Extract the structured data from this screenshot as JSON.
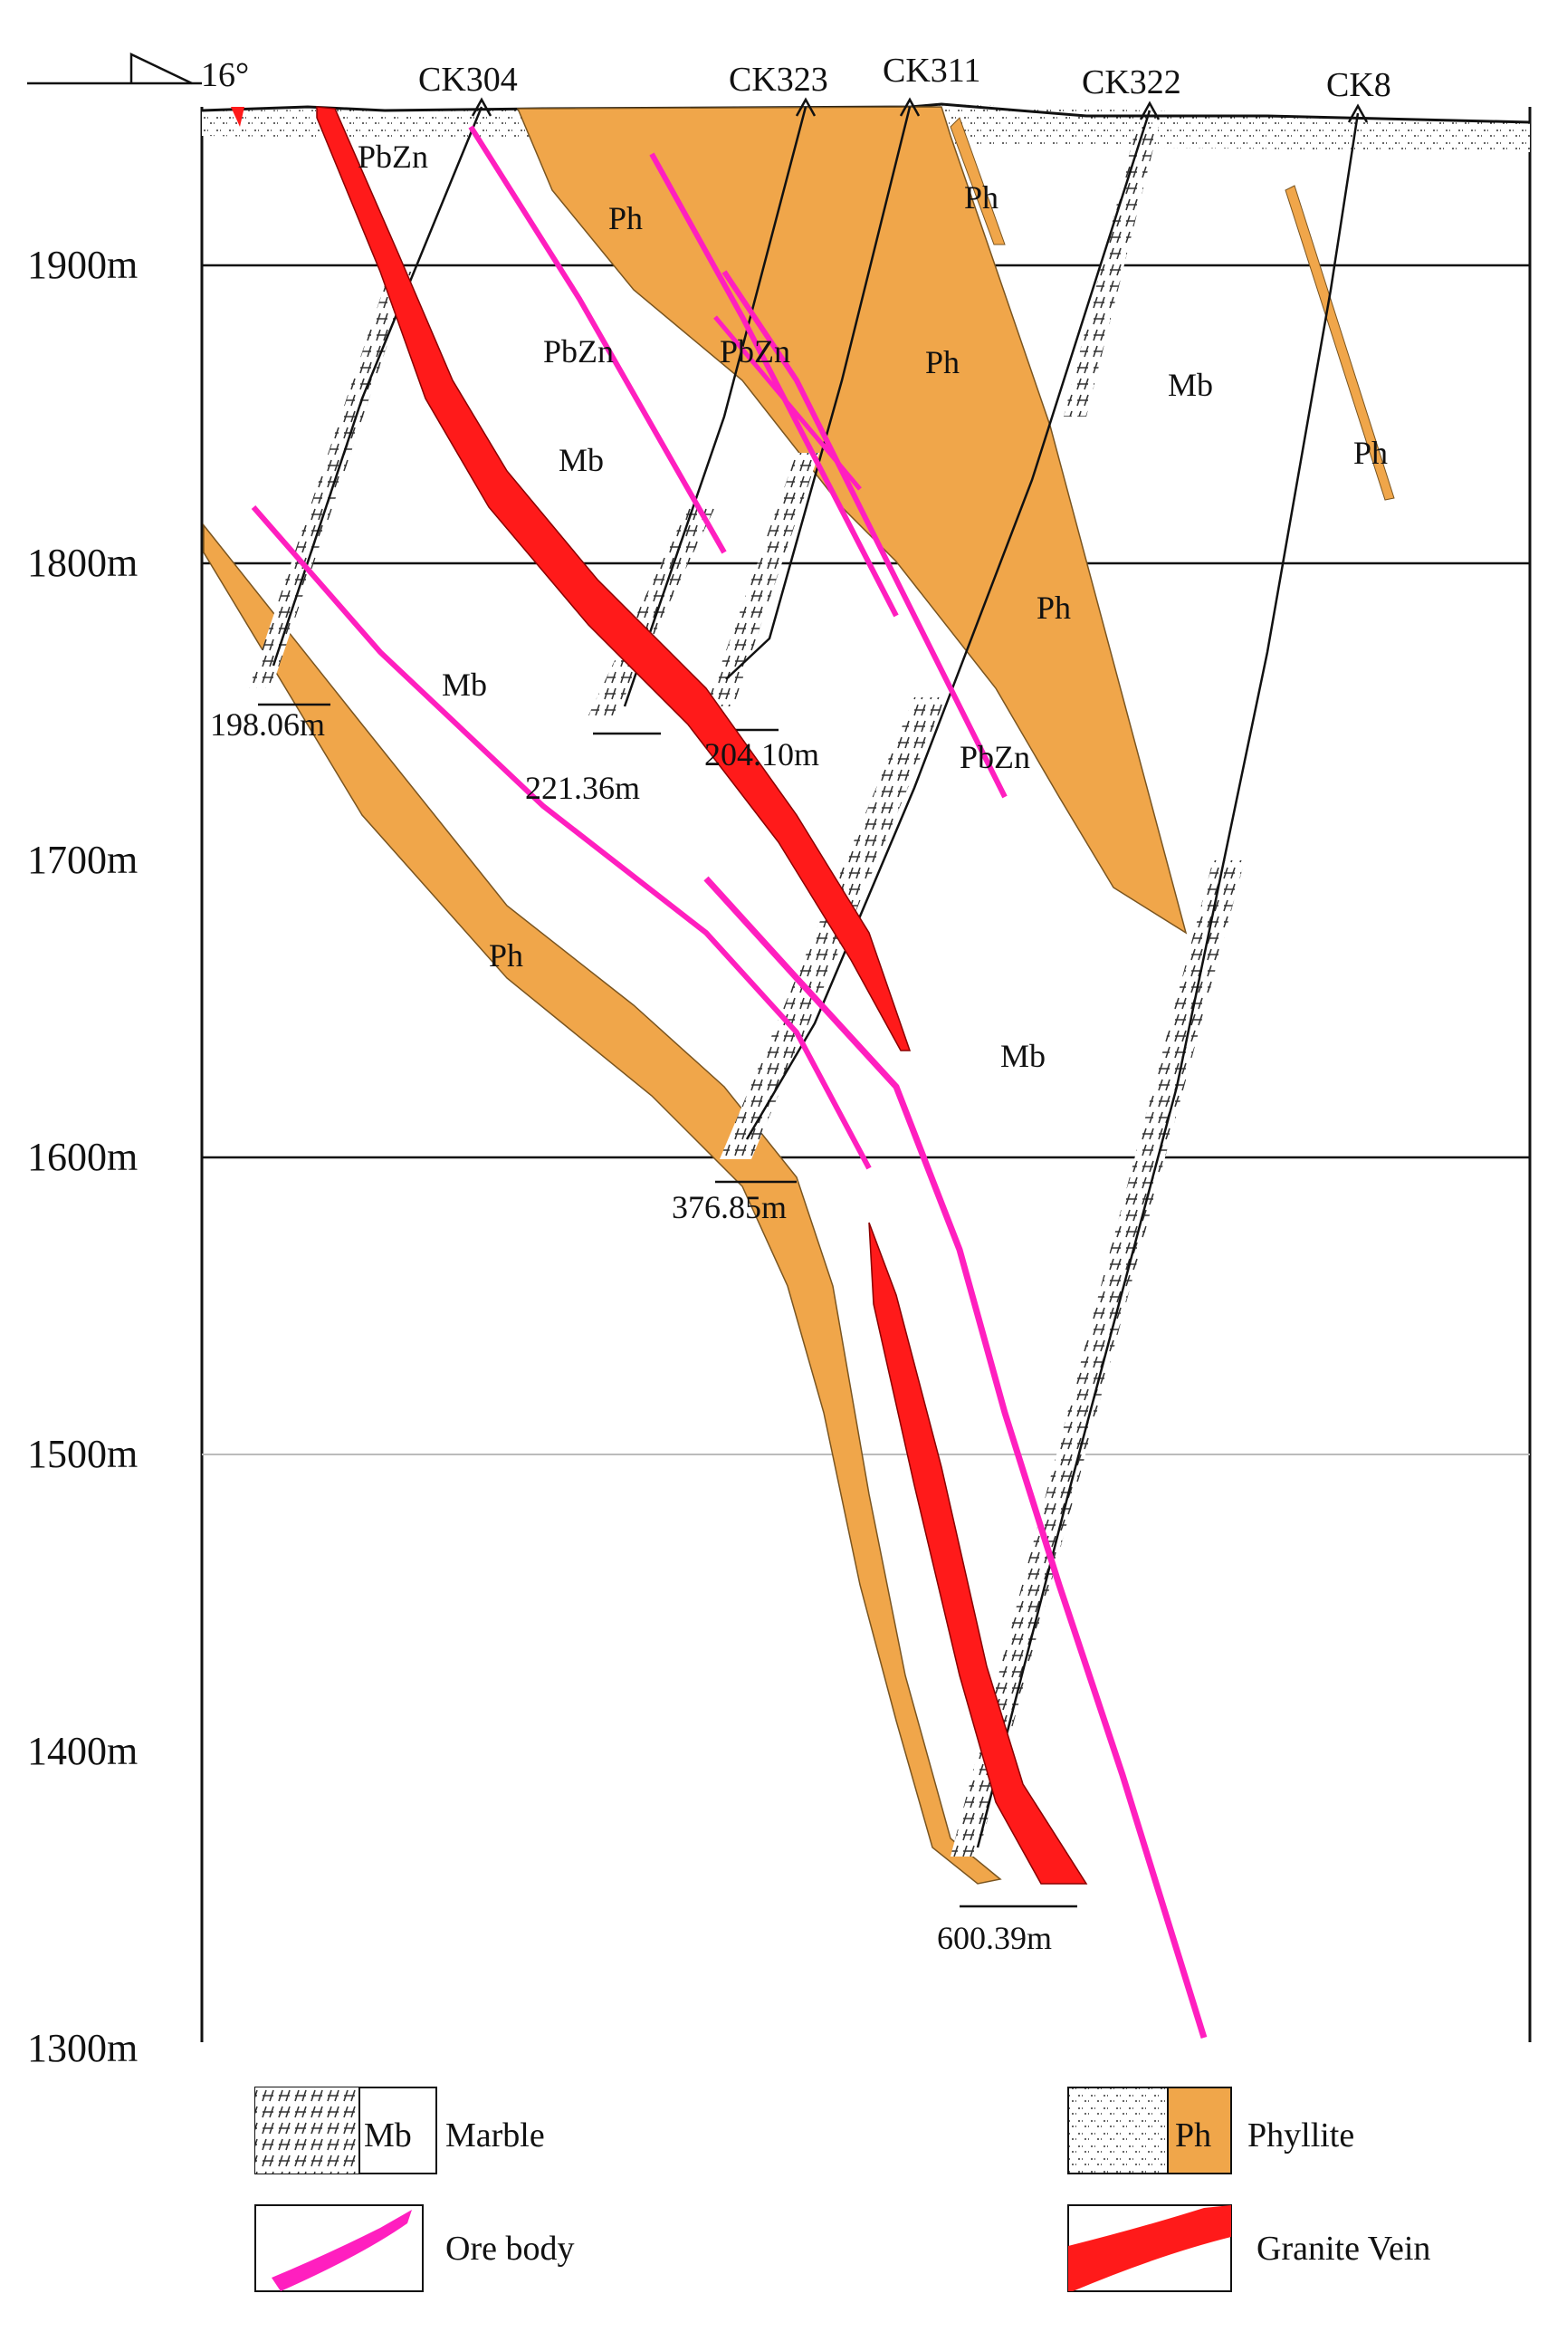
{
  "orientation": {
    "angle_label": "16°"
  },
  "elevation_labels": [
    "1900m",
    "1800m",
    "1700m",
    "1600m",
    "1500m",
    "1400m",
    "1300m"
  ],
  "drillholes": [
    {
      "name": "CK304",
      "final_depth": "198.06m"
    },
    {
      "name": "CK323",
      "final_depth": "221.36m"
    },
    {
      "name": "CK311",
      "final_depth": "204.10m"
    },
    {
      "name": "CK322",
      "final_depth": "376.85m"
    },
    {
      "name": "CK8",
      "final_depth": "600.39m"
    }
  ],
  "rock_labels": {
    "pbzn_top": "PbZn",
    "ph_1": "Ph",
    "ph_2": "Ph",
    "ph_3": "Ph",
    "ph_4": "Ph",
    "ph_5": "Ph",
    "ph_6": "Ph",
    "pbzn_1": "PbZn",
    "pbzn_2": "PbZn",
    "pbzn_3": "PbZn",
    "mb_1": "Mb",
    "mb_2": "Mb",
    "mb_3": "Mb",
    "mb_4": "Mb"
  },
  "legend": {
    "marble_abbr": "Mb",
    "marble_label": "Marble",
    "phyllite_abbr": "Ph",
    "phyllite_label": "Phyllite",
    "ore_label": "Ore body",
    "granite_label": "Granite Vein"
  },
  "colors": {
    "phyllite": "#f0a64a",
    "ore_body": "#ff1fbf",
    "granite_vein": "#ff1a1a"
  }
}
